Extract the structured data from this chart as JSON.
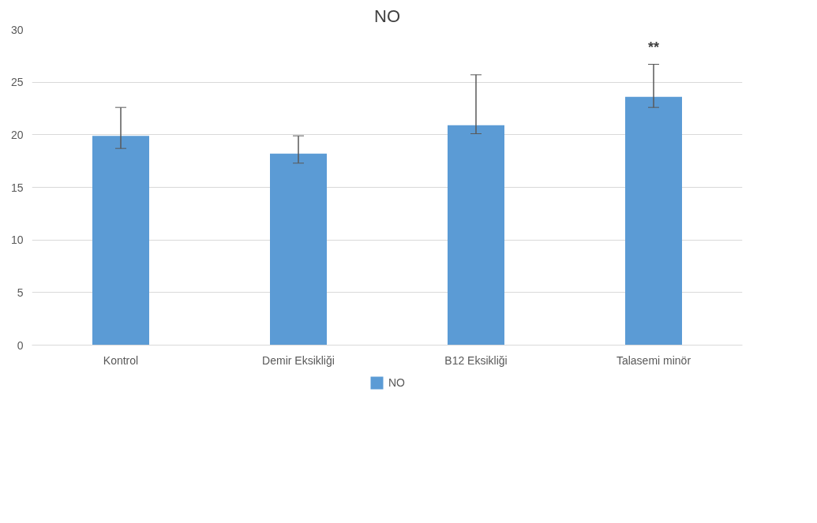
{
  "chart_data": {
    "type": "bar",
    "title": "NO",
    "categories": [
      "Kontrol",
      "Demir Eksikliği",
      "B12 Eksikliği",
      "Talasemi minör"
    ],
    "series": [
      {
        "name": "NO",
        "color": "#5b9bd5",
        "values": [
          19.9,
          18.2,
          20.9,
          23.6
        ],
        "errors": [
          [
            18.7,
            22.6
          ],
          [
            17.3,
            19.9
          ],
          [
            20.1,
            25.7
          ],
          [
            22.6,
            26.7
          ]
        ]
      }
    ],
    "ylim": [
      0,
      30
    ],
    "yticks": [
      0,
      5,
      10,
      15,
      20,
      25,
      30
    ],
    "grid": "y",
    "legend": "bottom",
    "annotations": [
      "**"
    ]
  }
}
